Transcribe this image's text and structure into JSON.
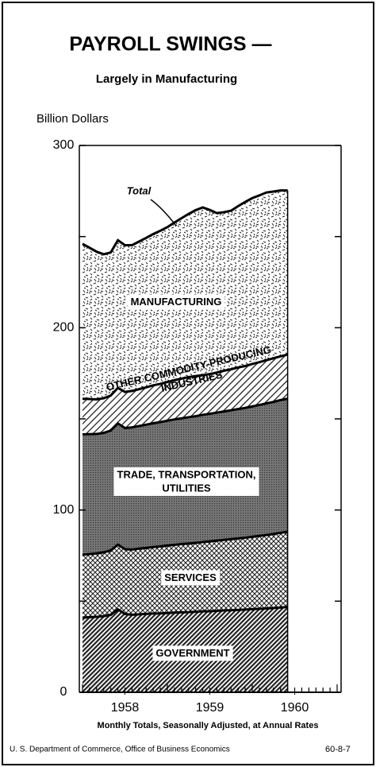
{
  "chart_data": {
    "type": "stacked-area",
    "title": "PAYROLL SWINGS —",
    "subtitle": "Largely in Manufacturing",
    "y_label": "Billion Dollars",
    "footnote": "Monthly Totals, Seasonally Adjusted, at Annual Rates",
    "source": "U. S. Department of Commerce, Office of Business Economics",
    "chart_id": "60-8-7",
    "annotation": "Total",
    "x": [
      1958.0,
      1958.083,
      1958.167,
      1958.25,
      1958.333,
      1958.417,
      1958.5,
      1958.583,
      1958.667,
      1958.75,
      1958.833,
      1958.917,
      1959.0,
      1959.083,
      1959.167,
      1959.25,
      1959.333,
      1959.417,
      1959.5,
      1959.583,
      1959.667,
      1959.75,
      1959.833,
      1959.917,
      1960.0,
      1960.083,
      1960.167,
      1960.25,
      1960.333,
      1960.417
    ],
    "series": [
      {
        "name": "GOVERNMENT",
        "color": "#555555",
        "values": [
          41.0,
          41.2,
          41.4,
          41.8,
          42.5,
          45.5,
          43.0,
          42.5,
          42.8,
          43.0,
          43.2,
          43.3,
          43.5,
          43.7,
          43.9,
          44.0,
          44.2,
          44.4,
          44.5,
          44.7,
          44.9,
          45.0,
          45.2,
          45.4,
          45.6,
          45.8,
          46.0,
          46.2,
          46.5,
          46.8
        ]
      },
      {
        "name": "SERVICES",
        "color": "#888888",
        "values": [
          34.5,
          34.6,
          34.8,
          35.0,
          35.3,
          35.5,
          35.5,
          35.8,
          36.0,
          36.2,
          36.5,
          36.7,
          37.0,
          37.2,
          37.4,
          37.6,
          37.8,
          38.0,
          38.3,
          38.5,
          38.7,
          39.0,
          39.2,
          39.4,
          39.7,
          40.0,
          40.3,
          40.6,
          41.0,
          41.3
        ]
      },
      {
        "name": "TRADE, TRANSPORTATION, UTILITIES",
        "color": "#6e6e6e",
        "values": [
          66.0,
          65.8,
          65.5,
          65.5,
          65.8,
          66.5,
          66.5,
          67.0,
          67.3,
          67.6,
          67.9,
          68.2,
          68.5,
          68.8,
          69.0,
          69.3,
          69.5,
          69.8,
          70.0,
          70.2,
          70.5,
          70.7,
          71.0,
          71.2,
          71.5,
          71.8,
          72.2,
          72.5,
          72.8,
          73.0
        ]
      },
      {
        "name": "OTHER COMMODITY-PRODUCING INDUSTRIES",
        "color": "#999999",
        "values": [
          19.5,
          19.3,
          19.0,
          19.0,
          19.2,
          19.5,
          19.8,
          20.0,
          20.2,
          20.5,
          20.8,
          21.0,
          21.2,
          21.5,
          21.8,
          22.0,
          22.0,
          21.8,
          21.8,
          22.0,
          22.3,
          22.5,
          22.8,
          23.0,
          23.3,
          23.5,
          23.7,
          23.9,
          24.0,
          24.2
        ]
      },
      {
        "name": "MANUFACTURING",
        "color": "#bbbbbb",
        "values": [
          85,
          83,
          81,
          79,
          78.5,
          81,
          80.5,
          80,
          81,
          82,
          83,
          84,
          85,
          86.5,
          88,
          89.5,
          91,
          92,
          90,
          87.5,
          87,
          87,
          88.5,
          90,
          91,
          91.5,
          92,
          91.5,
          91,
          90
        ]
      }
    ],
    "xlim": [
      1958,
      1961
    ],
    "xticks": [
      {
        "value": 1958.5,
        "label": "1958"
      },
      {
        "value": 1959.5,
        "label": "1959"
      },
      {
        "value": 1960.5,
        "label": "1960"
      }
    ],
    "ylim": [
      0,
      300
    ],
    "yticks": [
      0,
      100,
      200,
      300
    ]
  }
}
